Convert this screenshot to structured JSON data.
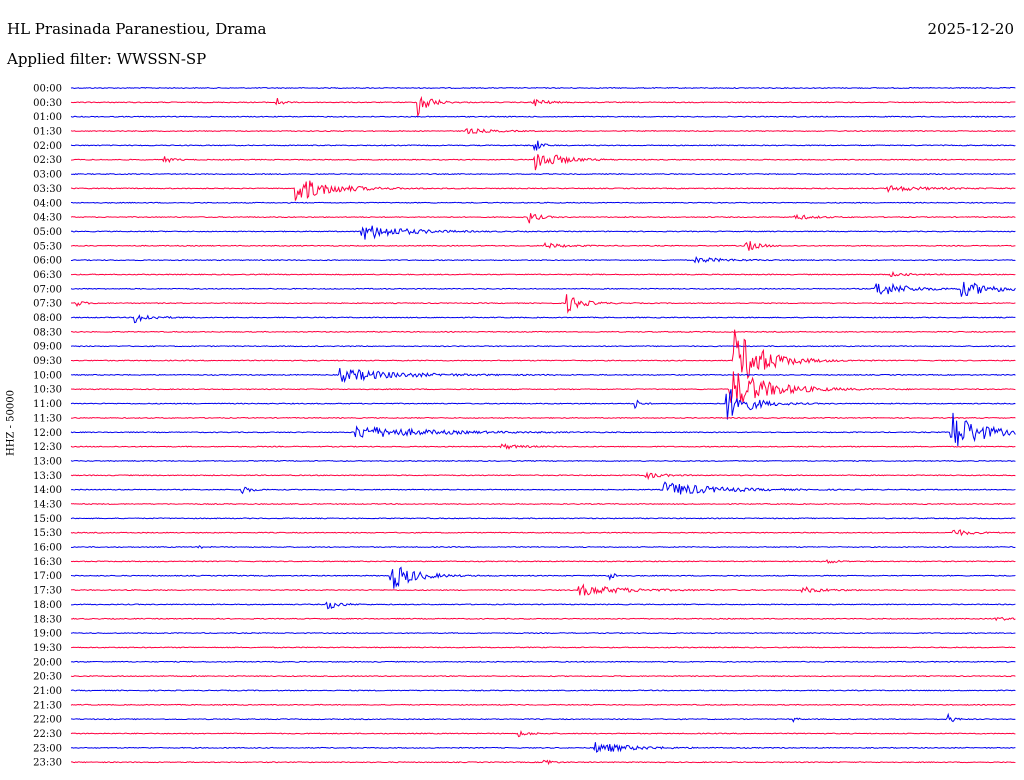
{
  "header": {
    "station": "HL Prasinada Paranestiou, Drama",
    "date": "2025-12-20",
    "filter": "Applied filter: WWSSN-SP"
  },
  "side_label": "HHZ - 50000",
  "colors": {
    "blue": "#0000ee",
    "red": "#ff0040",
    "background": "#ffffff",
    "text": "#000000"
  },
  "chart_data": {
    "type": "line",
    "title": "HL Prasinada Paranestiou, Drama",
    "ylabel": "HHZ - 50000",
    "xlim": [
      0,
      30
    ],
    "grid": false,
    "series": [
      {
        "name": "00:00",
        "color": "#0000ee",
        "events": []
      },
      {
        "name": "00:30",
        "color": "#ff0040",
        "events": [
          {
            "t": 6.5,
            "amp": 6,
            "dur": 0.3
          },
          {
            "t": 11.0,
            "amp": 15,
            "dur": 0.6
          },
          {
            "t": 14.6,
            "amp": 6,
            "dur": 0.6
          }
        ]
      },
      {
        "name": "01:00",
        "color": "#0000ee",
        "events": []
      },
      {
        "name": "01:30",
        "color": "#ff0040",
        "events": [
          {
            "t": 12.5,
            "amp": 3,
            "dur": 1.2
          }
        ]
      },
      {
        "name": "02:00",
        "color": "#0000ee",
        "events": [
          {
            "t": 14.7,
            "amp": 10,
            "dur": 0.3
          }
        ]
      },
      {
        "name": "02:30",
        "color": "#ff0040",
        "events": [
          {
            "t": 2.9,
            "amp": 5,
            "dur": 0.4
          },
          {
            "t": 14.7,
            "amp": 12,
            "dur": 1.2
          }
        ]
      },
      {
        "name": "03:00",
        "color": "#0000ee",
        "events": []
      },
      {
        "name": "03:30",
        "color": "#ff0040",
        "events": [
          {
            "t": 7.1,
            "amp": 14,
            "dur": 1.8
          },
          {
            "t": 25.9,
            "amp": 3,
            "dur": 2.0
          }
        ]
      },
      {
        "name": "04:00",
        "color": "#0000ee",
        "events": []
      },
      {
        "name": "04:30",
        "color": "#ff0040",
        "events": [
          {
            "t": 14.5,
            "amp": 7,
            "dur": 0.5
          },
          {
            "t": 22.9,
            "amp": 3,
            "dur": 1.0
          }
        ]
      },
      {
        "name": "05:00",
        "color": "#0000ee",
        "events": [
          {
            "t": 9.2,
            "amp": 9,
            "dur": 2.0
          }
        ]
      },
      {
        "name": "05:30",
        "color": "#ff0040",
        "events": [
          {
            "t": 15.0,
            "amp": 3,
            "dur": 1.0
          },
          {
            "t": 21.4,
            "amp": 7,
            "dur": 0.6
          }
        ]
      },
      {
        "name": "06:00",
        "color": "#0000ee",
        "events": [
          {
            "t": 19.8,
            "amp": 3,
            "dur": 1.5
          }
        ]
      },
      {
        "name": "06:30",
        "color": "#ff0040",
        "events": [
          {
            "t": 26.0,
            "amp": 2,
            "dur": 1.0
          }
        ]
      },
      {
        "name": "07:00",
        "color": "#0000ee",
        "events": [
          {
            "t": 25.5,
            "amp": 9,
            "dur": 1.5
          },
          {
            "t": 28.2,
            "amp": 8,
            "dur": 1.8
          }
        ]
      },
      {
        "name": "07:30",
        "color": "#ff0040",
        "events": [
          {
            "t": 0.1,
            "amp": 4,
            "dur": 0.4
          },
          {
            "t": 15.7,
            "amp": 10,
            "dur": 0.8
          }
        ]
      },
      {
        "name": "08:00",
        "color": "#0000ee",
        "events": [
          {
            "t": 2.0,
            "amp": 6,
            "dur": 0.8
          }
        ]
      },
      {
        "name": "08:30",
        "color": "#ff0040",
        "events": []
      },
      {
        "name": "09:00",
        "color": "#0000ee",
        "events": []
      },
      {
        "name": "09:30",
        "color": "#ff0040",
        "events": [
          {
            "t": 21.0,
            "amp": 34,
            "dur": 1.5
          }
        ]
      },
      {
        "name": "10:00",
        "color": "#0000ee",
        "events": [
          {
            "t": 8.5,
            "amp": 7,
            "dur": 3.0
          }
        ]
      },
      {
        "name": "10:30",
        "color": "#ff0040",
        "events": [
          {
            "t": 20.9,
            "amp": 22,
            "dur": 2.0
          }
        ]
      },
      {
        "name": "11:00",
        "color": "#0000ee",
        "events": [
          {
            "t": 20.8,
            "amp": 18,
            "dur": 1.2
          },
          {
            "t": 17.9,
            "amp": 5,
            "dur": 0.3
          }
        ]
      },
      {
        "name": "11:30",
        "color": "#ff0040",
        "events": []
      },
      {
        "name": "12:00",
        "color": "#0000ee",
        "events": [
          {
            "t": 9.0,
            "amp": 7,
            "dur": 3.5
          },
          {
            "t": 27.9,
            "amp": 24,
            "dur": 1.5
          }
        ]
      },
      {
        "name": "12:30",
        "color": "#ff0040",
        "events": [
          {
            "t": 13.6,
            "amp": 3,
            "dur": 1.0
          }
        ]
      },
      {
        "name": "13:00",
        "color": "#0000ee",
        "events": []
      },
      {
        "name": "13:30",
        "color": "#ff0040",
        "events": [
          {
            "t": 18.2,
            "amp": 4,
            "dur": 0.8
          }
        ]
      },
      {
        "name": "14:00",
        "color": "#0000ee",
        "events": [
          {
            "t": 5.4,
            "amp": 6,
            "dur": 0.4
          },
          {
            "t": 18.8,
            "amp": 8,
            "dur": 2.5
          }
        ]
      },
      {
        "name": "14:30",
        "color": "#ff0040",
        "events": []
      },
      {
        "name": "15:00",
        "color": "#0000ee",
        "events": []
      },
      {
        "name": "15:30",
        "color": "#ff0040",
        "events": [
          {
            "t": 28.0,
            "amp": 4,
            "dur": 0.8
          }
        ]
      },
      {
        "name": "16:00",
        "color": "#0000ee",
        "events": [
          {
            "t": 4.0,
            "amp": 3,
            "dur": 0.2
          }
        ]
      },
      {
        "name": "16:30",
        "color": "#ff0040",
        "events": [
          {
            "t": 24.0,
            "amp": 2,
            "dur": 0.6
          }
        ]
      },
      {
        "name": "17:00",
        "color": "#0000ee",
        "events": [
          {
            "t": 10.1,
            "amp": 16,
            "dur": 1.2
          },
          {
            "t": 17.0,
            "amp": 6,
            "dur": 0.4
          }
        ]
      },
      {
        "name": "17:30",
        "color": "#ff0040",
        "events": [
          {
            "t": 16.1,
            "amp": 6,
            "dur": 2.2
          },
          {
            "t": 23.2,
            "amp": 3,
            "dur": 1.2
          }
        ]
      },
      {
        "name": "18:00",
        "color": "#0000ee",
        "events": [
          {
            "t": 8.1,
            "amp": 6,
            "dur": 0.6
          }
        ]
      },
      {
        "name": "18:30",
        "color": "#ff0040",
        "events": [
          {
            "t": 29.3,
            "amp": 2,
            "dur": 0.8
          }
        ]
      },
      {
        "name": "19:00",
        "color": "#0000ee",
        "events": []
      },
      {
        "name": "19:30",
        "color": "#ff0040",
        "events": []
      },
      {
        "name": "20:00",
        "color": "#0000ee",
        "events": []
      },
      {
        "name": "20:30",
        "color": "#ff0040",
        "events": []
      },
      {
        "name": "21:00",
        "color": "#0000ee",
        "events": []
      },
      {
        "name": "21:30",
        "color": "#ff0040",
        "events": []
      },
      {
        "name": "22:00",
        "color": "#0000ee",
        "events": [
          {
            "t": 22.9,
            "amp": 4,
            "dur": 0.2
          },
          {
            "t": 27.8,
            "amp": 7,
            "dur": 0.3
          }
        ]
      },
      {
        "name": "22:30",
        "color": "#ff0040",
        "events": [
          {
            "t": 14.2,
            "amp": 3,
            "dur": 0.6
          }
        ]
      },
      {
        "name": "23:00",
        "color": "#0000ee",
        "events": [
          {
            "t": 16.6,
            "amp": 6,
            "dur": 1.8
          }
        ]
      },
      {
        "name": "23:30",
        "color": "#ff0040",
        "events": [
          {
            "t": 15.0,
            "amp": 6,
            "dur": 0.3
          }
        ]
      }
    ]
  }
}
